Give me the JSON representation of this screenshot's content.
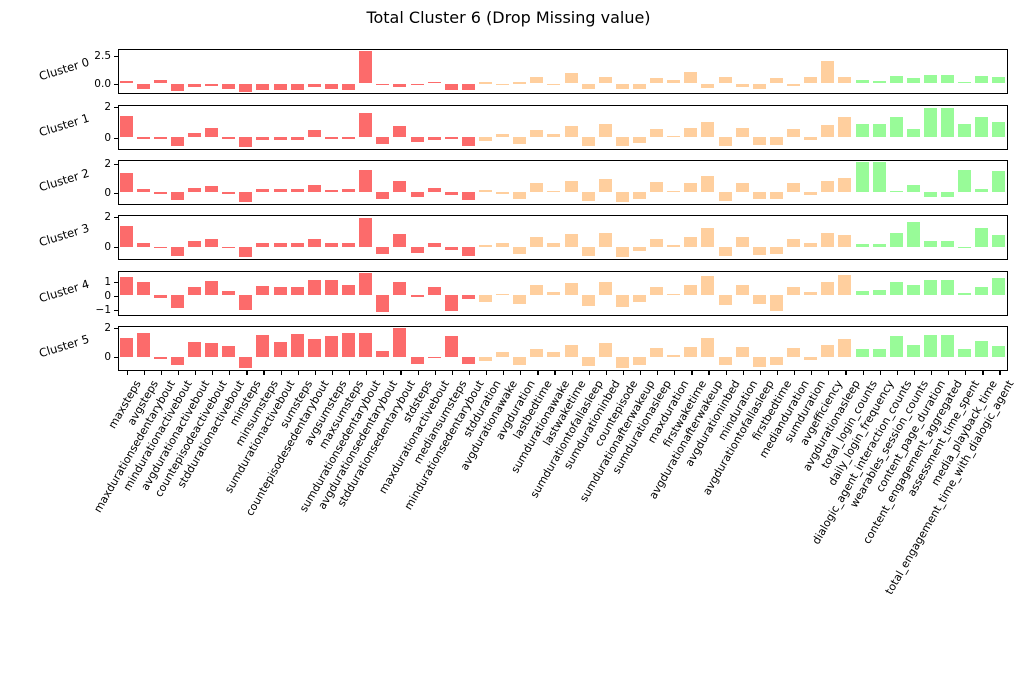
{
  "title": "Total Cluster 6 (Drop Missing value)",
  "colors": {
    "activity_bars": "#fc6b6b",
    "sleep_bars": "#ffcf9e",
    "engagement_bars": "#98fb98",
    "axis": "#000000",
    "background": "#ffffff"
  },
  "chart_data": {
    "type": "bar",
    "title": "Total Cluster 6 (Drop Missing value)",
    "xlabel": "",
    "ylabel_per_subplot": [
      "Cluster 0",
      "Cluster 1",
      "Cluster 2",
      "Cluster 3",
      "Cluster 4",
      "Cluster 5"
    ],
    "grid": false,
    "legend": "none",
    "categories": [
      "maxsteps",
      "avgsteps",
      "maxdurationsedentarybout",
      "mindurationactivebout",
      "avgdurationactivebout",
      "countepisodeactivebout",
      "stddurationactivebout",
      "minsteps",
      "minsumsteps",
      "sumdurationactivebout",
      "sumsteps",
      "countepisodesedentarybout",
      "avgsumsteps",
      "maxsumsteps",
      "sumdurationsedentarybout",
      "avgdurationsedentarybout",
      "stddurationsedentarybout",
      "stdsteps",
      "maxdurationactivebout",
      "mediansumsteps",
      "mindurationsedentarybout",
      "stdduration",
      "avgdurationawake",
      "avgduration",
      "lastbedtime",
      "sumdurationawake",
      "lastwaketime",
      "sumdurationtofallasleep",
      "sumdurationinbed",
      "countepisode",
      "sumdurationafterwakeup",
      "sumdurationasleep",
      "maxduration",
      "firstwaketime",
      "avgdurationafterwakeup",
      "avgdurationinbed",
      "minduration",
      "avgdurationtofallasleep",
      "firstbedtime",
      "medianduration",
      "sumduration",
      "avgefficiency",
      "avgdurationasleep",
      "total_login_counts",
      "daily_login_frequency",
      "dialogic_agent_interaction_counts",
      "wearables_session_counts",
      "content_page_duration",
      "content_engagement_aggregated",
      "assessment_time_spent",
      "media_playback_time",
      "total_engagement_time_with_dialogic_agent"
    ],
    "color_groups": [
      {
        "name": "activity",
        "color_key": "activity_bars",
        "start": 0,
        "end": 20
      },
      {
        "name": "sleep",
        "color_key": "sleep_bars",
        "start": 21,
        "end": 42
      },
      {
        "name": "engagement",
        "color_key": "engagement_bars",
        "start": 43,
        "end": 51
      }
    ],
    "subplots": [
      {
        "name": "Cluster 0",
        "yticks": [
          {
            "label": "2.5",
            "value": 2.5
          },
          {
            "label": "0.0",
            "value": 0
          }
        ],
        "ylim": [
          -0.9,
          3.15
        ],
        "values": [
          0.25,
          -0.5,
          0.35,
          -0.7,
          -0.35,
          -0.2,
          -0.5,
          -0.75,
          -0.6,
          -0.6,
          -0.55,
          -0.3,
          -0.5,
          -0.6,
          2.9,
          -0.15,
          -0.35,
          -0.15,
          0.15,
          -0.55,
          -0.6,
          0.05,
          -0.15,
          0.1,
          0.55,
          -0.15,
          0.95,
          -0.5,
          0.55,
          -0.45,
          -0.45,
          0.5,
          0.35,
          1.05,
          -0.4,
          0.6,
          -0.35,
          -0.5,
          0.5,
          -0.2,
          0.55,
          2.0,
          0.6,
          0.3,
          0.25,
          0.7,
          0.5,
          0.8,
          0.8,
          0.15,
          0.65,
          0.6
        ]
      },
      {
        "name": "Cluster 1",
        "yticks": [
          {
            "label": "2",
            "value": 2
          },
          {
            "label": "0",
            "value": 0
          }
        ],
        "ylim": [
          -0.8,
          2.15
        ],
        "values": [
          1.4,
          -0.1,
          -0.05,
          -0.6,
          0.3,
          0.6,
          -0.05,
          -0.65,
          -0.15,
          -0.15,
          -0.15,
          0.5,
          -0.1,
          -0.1,
          1.6,
          -0.45,
          0.75,
          -0.3,
          -0.2,
          -0.1,
          -0.55,
          -0.25,
          0.2,
          -0.45,
          0.45,
          0.2,
          0.75,
          -0.55,
          0.85,
          -0.6,
          -0.4,
          0.55,
          0.1,
          0.6,
          1.0,
          -0.55,
          0.6,
          -0.5,
          -0.5,
          0.55,
          -0.15,
          0.8,
          1.35,
          0.9,
          0.9,
          1.3,
          0.55,
          1.95,
          1.95,
          0.85,
          1.3,
          1.0
        ]
      },
      {
        "name": "Cluster 2",
        "yticks": [
          {
            "label": "2",
            "value": 2
          },
          {
            "label": "0",
            "value": 0
          }
        ],
        "ylim": [
          -0.85,
          2.25
        ],
        "values": [
          1.3,
          0.25,
          -0.1,
          -0.55,
          0.3,
          0.45,
          -0.15,
          -0.65,
          0.25,
          0.2,
          0.2,
          0.5,
          0.15,
          0.2,
          1.55,
          -0.5,
          0.75,
          -0.35,
          0.3,
          -0.2,
          -0.55,
          0.15,
          -0.1,
          -0.5,
          0.6,
          0.1,
          0.8,
          -0.6,
          0.9,
          -0.7,
          -0.5,
          0.7,
          0.1,
          0.6,
          1.1,
          -0.6,
          0.65,
          -0.5,
          -0.5,
          0.6,
          -0.2,
          0.75,
          1.0,
          2.1,
          2.1,
          0.1,
          0.5,
          -0.3,
          -0.3,
          1.55,
          0.25,
          1.45
        ]
      },
      {
        "name": "Cluster 3",
        "yticks": [
          {
            "label": "2",
            "value": 2
          },
          {
            "label": "0",
            "value": 0
          }
        ],
        "ylim": [
          -0.85,
          2.1
        ],
        "values": [
          1.35,
          0.2,
          -0.1,
          -0.6,
          0.35,
          0.5,
          -0.1,
          -0.7,
          0.25,
          0.2,
          0.25,
          0.5,
          0.2,
          0.2,
          1.85,
          -0.5,
          0.8,
          -0.4,
          0.25,
          -0.2,
          -0.6,
          0.1,
          0.2,
          -0.5,
          0.6,
          0.2,
          0.8,
          -0.6,
          0.9,
          -0.7,
          -0.3,
          0.5,
          0.1,
          0.6,
          1.2,
          -0.6,
          0.6,
          -0.55,
          -0.5,
          0.5,
          0.2,
          0.9,
          0.75,
          0.15,
          0.15,
          0.9,
          1.6,
          0.35,
          0.35,
          -0.1,
          1.2,
          0.75
        ]
      },
      {
        "name": "Cluster 4",
        "yticks": [
          {
            "label": "1",
            "value": 1
          },
          {
            "label": "0",
            "value": 0
          },
          {
            "label": "−1",
            "value": -1
          }
        ],
        "ylim": [
          -1.45,
          1.75
        ],
        "values": [
          1.3,
          0.95,
          -0.2,
          -0.9,
          0.55,
          1.0,
          0.3,
          -1.05,
          0.65,
          0.55,
          0.6,
          1.05,
          1.1,
          0.75,
          1.55,
          -1.2,
          0.9,
          -0.1,
          0.55,
          -1.15,
          -0.3,
          -0.5,
          0.1,
          -0.6,
          0.75,
          0.2,
          0.85,
          -0.8,
          0.95,
          -0.85,
          -0.5,
          0.6,
          0.1,
          0.7,
          1.35,
          -0.7,
          0.7,
          -0.6,
          -1.1,
          0.55,
          0.2,
          0.9,
          1.45,
          0.3,
          0.35,
          0.95,
          0.7,
          1.1,
          1.1,
          0.15,
          0.55,
          1.25
        ]
      },
      {
        "name": "Cluster 5",
        "yticks": [
          {
            "label": "2",
            "value": 2
          },
          {
            "label": "0",
            "value": 0
          }
        ],
        "ylim": [
          -0.95,
          2.15
        ],
        "values": [
          1.3,
          1.65,
          -0.15,
          -0.55,
          1.0,
          0.95,
          0.75,
          -0.8,
          1.5,
          1.0,
          1.55,
          1.2,
          1.45,
          1.6,
          1.6,
          0.4,
          1.95,
          -0.5,
          -0.1,
          1.45,
          -0.5,
          -0.3,
          0.3,
          -0.55,
          0.5,
          0.3,
          0.8,
          -0.65,
          0.95,
          -0.8,
          -0.6,
          0.6,
          0.1,
          0.7,
          1.3,
          -0.6,
          0.7,
          -0.7,
          -0.6,
          0.6,
          -0.2,
          0.8,
          1.25,
          0.5,
          0.5,
          1.4,
          0.8,
          1.5,
          1.5,
          0.55,
          1.1,
          0.75
        ]
      }
    ]
  }
}
